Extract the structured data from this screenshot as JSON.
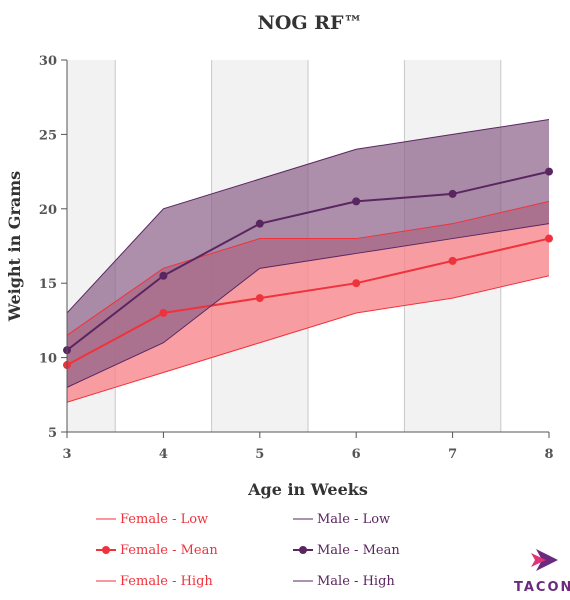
{
  "chart_data": {
    "type": "line",
    "title": "NOG RF™",
    "xlabel": "Age in Weeks",
    "ylabel": "Weight in Grams",
    "x": [
      3,
      4,
      5,
      6,
      7,
      8
    ],
    "xlim": [
      3,
      8
    ],
    "ylim": [
      5,
      30
    ],
    "yticks": [
      5,
      10,
      15,
      20,
      25,
      30
    ],
    "alternating_band_shading": true,
    "legend_placement": "bottom",
    "series": [
      {
        "name": "Female - Low",
        "group": "female",
        "role": "low",
        "values": [
          7,
          9,
          11,
          13,
          14,
          15.5
        ]
      },
      {
        "name": "Female - Mean",
        "group": "female",
        "role": "mean",
        "values": [
          9.5,
          13,
          14,
          15,
          16.5,
          18
        ]
      },
      {
        "name": "Female - High",
        "group": "female",
        "role": "high",
        "values": [
          11.5,
          16,
          18,
          18,
          19,
          20.5
        ]
      },
      {
        "name": "Male - Low",
        "group": "male",
        "role": "low",
        "values": [
          8,
          11,
          16,
          17,
          18,
          19
        ]
      },
      {
        "name": "Male - Mean",
        "group": "male",
        "role": "mean",
        "values": [
          10.5,
          15.5,
          19,
          20.5,
          21,
          22.5
        ]
      },
      {
        "name": "Male - High",
        "group": "male",
        "role": "high",
        "values": [
          13,
          20,
          22,
          24,
          25,
          26
        ]
      }
    ]
  },
  "colors": {
    "female": "#f0323c",
    "female_fill": "#f8878d",
    "male": "#5a2660",
    "male_fill": "#8a6088",
    "band": "#f2f2f2",
    "band_line": "#c8c8c8",
    "axis": "#555555"
  },
  "logo": {
    "text": "TACONIC",
    "color": "#6b2a7e",
    "accent": "#e0347a",
    "icon": "taconic-arrow-icon"
  }
}
